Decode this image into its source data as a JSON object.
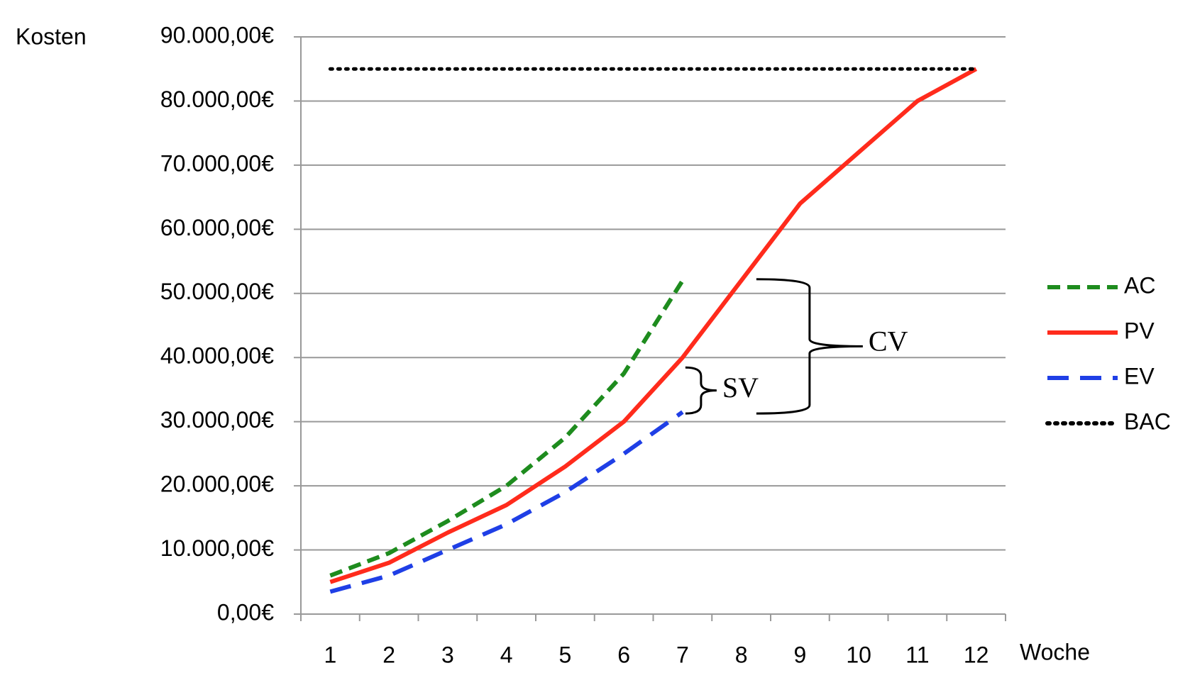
{
  "chart_data": {
    "type": "line",
    "y_label": "Kosten",
    "x_label": "Woche",
    "categories": [
      "1",
      "2",
      "3",
      "4",
      "5",
      "6",
      "7",
      "8",
      "9",
      "10",
      "11",
      "12"
    ],
    "series": [
      {
        "name": "AC",
        "color": "#1e8c1e",
        "dash": "18,10",
        "values": [
          6000,
          9500,
          14500,
          20000,
          27500,
          37500,
          52000,
          null,
          null,
          null,
          null,
          null
        ]
      },
      {
        "name": "PV",
        "color": "#ff2b1c",
        "dash": "none",
        "values": [
          5000,
          8000,
          12700,
          17000,
          23000,
          30000,
          40000,
          52000,
          64000,
          72000,
          80000,
          85000
        ]
      },
      {
        "name": "EV",
        "color": "#1f3fe6",
        "dash": "30,16",
        "values": [
          3500,
          6000,
          10000,
          14000,
          19000,
          25000,
          31500,
          null,
          null,
          null,
          null,
          null
        ]
      },
      {
        "name": "BAC",
        "color": "#000000",
        "dash": "3,8",
        "values": [
          85000,
          85000,
          85000,
          85000,
          85000,
          85000,
          85000,
          85000,
          85000,
          85000,
          85000,
          85000
        ]
      }
    ],
    "annotations": [
      "SV",
      "CV"
    ],
    "ylim": [
      0,
      90000
    ],
    "yticks": [
      {
        "value": 0,
        "label": "0,00€"
      },
      {
        "value": 10000,
        "label": "10.000,00€"
      },
      {
        "value": 20000,
        "label": "20.000,00€"
      },
      {
        "value": 30000,
        "label": "30.000,00€"
      },
      {
        "value": 40000,
        "label": "40.000,00€"
      },
      {
        "value": 50000,
        "label": "50.000,00€"
      },
      {
        "value": 60000,
        "label": "60.000,00€"
      },
      {
        "value": 70000,
        "label": "70.000,00€"
      },
      {
        "value": 80000,
        "label": "80.000,00€"
      },
      {
        "value": 90000,
        "label": "90.000,00€"
      }
    ],
    "grid": true,
    "legend": "right"
  }
}
